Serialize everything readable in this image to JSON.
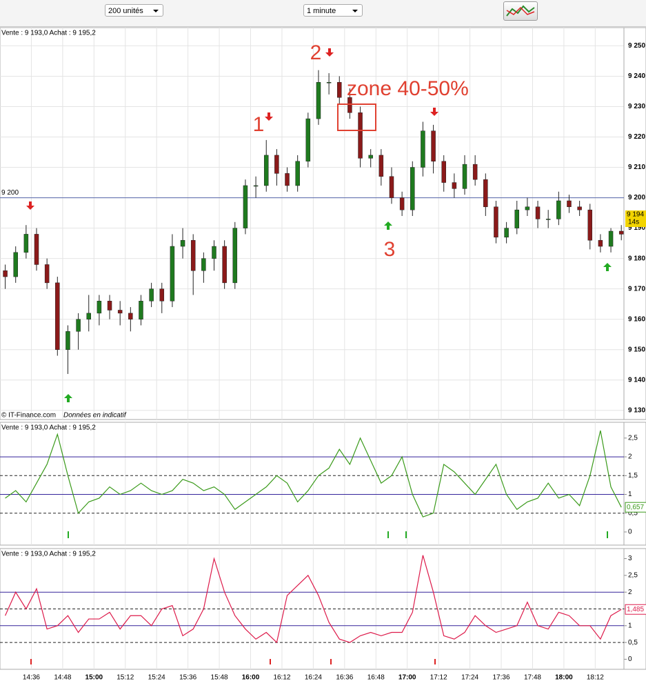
{
  "toolbar": {
    "quantity": "200 unités",
    "interval": "1 minute"
  },
  "chart_data": [
    {
      "type": "candlestick",
      "quote": "Vente : 9 193,0  Achat : 9 195,2",
      "x": [
        866,
        870,
        874,
        878,
        882,
        886,
        890,
        894,
        898,
        902,
        906,
        910,
        914,
        918,
        922,
        926,
        930,
        934,
        938,
        942,
        946,
        950,
        954,
        958,
        962,
        966,
        970,
        974,
        978,
        982,
        986,
        990,
        994,
        998,
        1002,
        1006,
        1010,
        1014,
        1018,
        1022,
        1026,
        1030,
        1034,
        1038,
        1042,
        1046,
        1050,
        1054,
        1058,
        1062,
        1066,
        1070,
        1074,
        1078,
        1082,
        1086,
        1090,
        1094,
        1098,
        1102
      ],
      "open": [
        9176,
        9174,
        9182,
        9188,
        9178,
        9172,
        9150,
        9156,
        9160,
        9162,
        9166,
        9163,
        9162,
        9160,
        9166,
        9170,
        9166,
        9184,
        9186,
        9176,
        9180,
        9184,
        9172,
        9190,
        9204,
        9204,
        9214,
        9208,
        9204,
        9212,
        9226,
        9238,
        9238,
        9233,
        9228,
        9213,
        9214,
        9207,
        9200,
        9196,
        9210,
        9222,
        9212,
        9205,
        9203,
        9211,
        9206,
        9197,
        9187,
        9190,
        9196,
        9197,
        9193,
        9193,
        9199,
        9197,
        9196,
        9186,
        9184,
        9189
      ],
      "high": [
        9178,
        9184,
        9191,
        9190,
        9180,
        9174,
        9158,
        9162,
        9168,
        9168,
        9168,
        9166,
        9164,
        9168,
        9172,
        9172,
        9188,
        9190,
        9188,
        9182,
        9186,
        9186,
        9192,
        9206,
        9207,
        9219,
        9216,
        9210,
        9214,
        9228,
        9242,
        9241,
        9240,
        9236,
        9230,
        9216,
        9216,
        9210,
        9202,
        9212,
        9225,
        9224,
        9214,
        9208,
        9214,
        9214,
        9208,
        9199,
        9192,
        9199,
        9200,
        9199,
        9196,
        9202,
        9201,
        9199,
        9198,
        9188,
        9190,
        9191
      ],
      "low": [
        9170,
        9172,
        9180,
        9176,
        9170,
        9148,
        9142,
        9150,
        9156,
        9158,
        9160,
        9158,
        9156,
        9158,
        9164,
        9162,
        9164,
        9180,
        9168,
        9172,
        9176,
        9170,
        9170,
        9188,
        9200,
        9202,
        9204,
        9202,
        9202,
        9210,
        9224,
        9234,
        9231,
        9226,
        9210,
        9210,
        9204,
        9198,
        9194,
        9194,
        9207,
        9208,
        9202,
        9200,
        9201,
        9204,
        9194,
        9185,
        9185,
        9188,
        9194,
        9190,
        9190,
        9191,
        9195,
        9194,
        9183,
        9182,
        9182,
        9186
      ],
      "close": [
        9174,
        9182,
        9188,
        9178,
        9172,
        9150,
        9156,
        9160,
        9162,
        9166,
        9163,
        9162,
        9160,
        9166,
        9170,
        9166,
        9184,
        9186,
        9176,
        9180,
        9184,
        9172,
        9190,
        9204,
        9204,
        9214,
        9208,
        9204,
        9212,
        9226,
        9238,
        9238,
        9233,
        9228,
        9213,
        9214,
        9207,
        9200,
        9196,
        9210,
        9222,
        9212,
        9205,
        9203,
        9211,
        9206,
        9197,
        9187,
        9190,
        9196,
        9197,
        9193,
        9193,
        9199,
        9197,
        9196,
        9186,
        9184,
        9189,
        9188
      ],
      "up_color": "#1f7a1f",
      "down_color": "#8b1a1a",
      "xlim": [
        864,
        1103
      ],
      "ylim": [
        9127,
        9256
      ],
      "yticks": [
        {
          "value": 9130,
          "label": "9 130"
        },
        {
          "value": 9140,
          "label": "9 140"
        },
        {
          "value": 9150,
          "label": "9 150"
        },
        {
          "value": 9160,
          "label": "9 160"
        },
        {
          "value": 9170,
          "label": "9 170"
        },
        {
          "value": 9180,
          "label": "9 180"
        },
        {
          "value": 9190,
          "label": "9 190"
        },
        {
          "value": 9200,
          "label": "9 200"
        },
        {
          "value": 9210,
          "label": "9 210"
        },
        {
          "value": 9220,
          "label": "9 220"
        },
        {
          "value": 9230,
          "label": "9 230"
        },
        {
          "value": 9240,
          "label": "9 240"
        },
        {
          "value": 9250,
          "label": "9 250"
        }
      ],
      "reference": {
        "value": 9200,
        "label": "9 200"
      },
      "last_price": {
        "value": 9194,
        "label": "9 194"
      },
      "countdown": "14s",
      "annotations": [
        "1",
        "2",
        "3",
        "zone 40-50%"
      ],
      "credit": "© IT-Finance.com",
      "disclaimer": "Données en indicatif"
    },
    {
      "type": "line",
      "quote": "Vente : 9 193,0  Achat : 9 195,2",
      "x": [
        866,
        870,
        874,
        878,
        882,
        886,
        890,
        894,
        898,
        902,
        906,
        910,
        914,
        918,
        922,
        926,
        930,
        934,
        938,
        942,
        946,
        950,
        954,
        958,
        962,
        966,
        970,
        974,
        978,
        982,
        986,
        990,
        994,
        998,
        1002,
        1006,
        1010,
        1014,
        1018,
        1022,
        1026,
        1030,
        1034,
        1038,
        1042,
        1046,
        1050,
        1054,
        1058,
        1062,
        1066,
        1070,
        1074,
        1078,
        1082,
        1086,
        1090,
        1094,
        1098,
        1102
      ],
      "series": [
        {
          "color": "#3a9a1a",
          "values": [
            0.9,
            1.1,
            0.8,
            1.3,
            1.8,
            2.6,
            1.5,
            0.5,
            0.8,
            0.9,
            1.2,
            1.0,
            1.1,
            1.3,
            1.1,
            1.0,
            1.1,
            1.4,
            1.3,
            1.1,
            1.2,
            1.0,
            0.6,
            0.8,
            1.0,
            1.2,
            1.5,
            1.3,
            0.8,
            1.1,
            1.5,
            1.7,
            2.2,
            1.8,
            2.5,
            1.9,
            1.3,
            1.5,
            2.0,
            1.0,
            0.4,
            0.5,
            1.8,
            1.6,
            1.3,
            1.0,
            1.4,
            1.8,
            1.0,
            0.6,
            0.8,
            0.9,
            1.3,
            0.9,
            1.0,
            0.7,
            1.5,
            2.7,
            1.2,
            0.657
          ],
          "last_label": "0,657"
        }
      ],
      "xlim": [
        864,
        1103
      ],
      "ylim": [
        -0.35,
        2.92
      ],
      "yticks": [
        0,
        {
          "value": 0.5,
          "label": "0,5"
        },
        1,
        {
          "value": 1.5,
          "label": "1,5"
        },
        2,
        {
          "value": 2.5,
          "label": "2,5"
        }
      ],
      "levels": [
        {
          "value": 2,
          "style": "solid"
        },
        {
          "value": 1.5,
          "style": "dashed"
        },
        {
          "value": 1,
          "style": "solid"
        },
        {
          "value": 0.5,
          "style": "dashed"
        }
      ]
    },
    {
      "type": "line",
      "quote": "Vente : 9 193,0  Achat : 9 195,2",
      "x": [
        866,
        870,
        874,
        878,
        882,
        886,
        890,
        894,
        898,
        902,
        906,
        910,
        914,
        918,
        922,
        926,
        930,
        934,
        938,
        942,
        946,
        950,
        954,
        958,
        962,
        966,
        970,
        974,
        978,
        982,
        986,
        990,
        994,
        998,
        1002,
        1006,
        1010,
        1014,
        1018,
        1022,
        1026,
        1030,
        1034,
        1038,
        1042,
        1046,
        1050,
        1054,
        1058,
        1062,
        1066,
        1070,
        1074,
        1078,
        1082,
        1086,
        1090,
        1094,
        1098,
        1102
      ],
      "series": [
        {
          "color": "#dd1a4a",
          "values": [
            1.3,
            2.0,
            1.5,
            2.1,
            0.9,
            1.0,
            1.3,
            0.8,
            1.2,
            1.2,
            1.4,
            0.9,
            1.3,
            1.3,
            1.0,
            1.5,
            1.6,
            0.7,
            0.9,
            1.5,
            3.0,
            2.0,
            1.3,
            0.9,
            0.6,
            0.8,
            0.5,
            1.9,
            2.2,
            2.5,
            1.9,
            1.1,
            0.6,
            0.5,
            0.7,
            0.8,
            0.7,
            0.8,
            0.8,
            1.4,
            3.1,
            2.0,
            0.7,
            0.6,
            0.8,
            1.3,
            1.0,
            0.8,
            0.9,
            1.0,
            1.7,
            1.0,
            0.9,
            1.4,
            1.3,
            1.0,
            1.0,
            0.6,
            1.3,
            1.485
          ],
          "last_label": "1,485"
        }
      ],
      "xlim": [
        864,
        1103
      ],
      "ylim": [
        -0.3,
        3.3
      ],
      "yticks": [
        0,
        {
          "value": 0.5,
          "label": "0,5"
        },
        1,
        {
          "value": 1.5,
          "label": "1,5"
        },
        2,
        {
          "value": 2.5,
          "label": "2,5"
        },
        3
      ],
      "levels": [
        {
          "value": 2,
          "style": "solid"
        },
        {
          "value": 1.5,
          "style": "dashed"
        },
        {
          "value": 1,
          "style": "solid"
        },
        {
          "value": 0.5,
          "style": "dashed"
        }
      ],
      "xticks": [
        {
          "value": 876,
          "label": "14:36"
        },
        {
          "value": 888,
          "label": "14:48"
        },
        {
          "value": 900,
          "label": "15:00"
        },
        {
          "value": 912,
          "label": "15:12"
        },
        {
          "value": 924,
          "label": "15:24"
        },
        {
          "value": 936,
          "label": "15:36"
        },
        {
          "value": 948,
          "label": "15:48"
        },
        {
          "value": 960,
          "label": "16:00"
        },
        {
          "value": 972,
          "label": "16:12"
        },
        {
          "value": 984,
          "label": "16:24"
        },
        {
          "value": 996,
          "label": "16:36"
        },
        {
          "value": 1008,
          "label": "16:48"
        },
        {
          "value": 1020,
          "label": "17:00"
        },
        {
          "value": 1032,
          "label": "17:12"
        },
        {
          "value": 1044,
          "label": "17:24"
        },
        {
          "value": 1056,
          "label": "17:36"
        },
        {
          "value": 1068,
          "label": "17:48"
        },
        {
          "value": 1080,
          "label": "18:00"
        },
        {
          "value": 1092,
          "label": "18:12"
        }
      ]
    }
  ]
}
